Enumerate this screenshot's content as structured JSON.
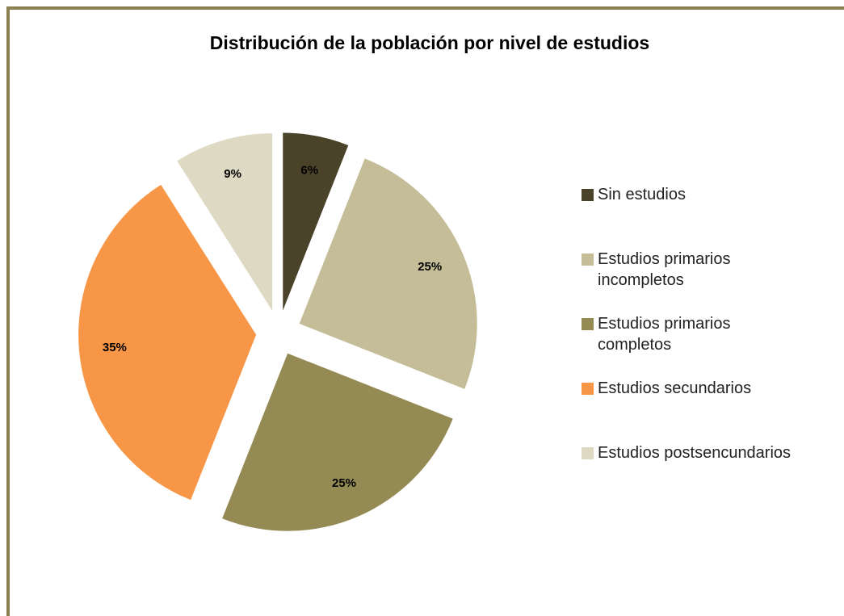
{
  "chart_data": {
    "type": "pie",
    "title": "Distribución de la población por nivel de estudios",
    "categories": [
      "Sin estudios",
      "Estudios primarios incompletos",
      "Estudios primarios completos",
      "Estudios secundarios",
      "Estudios postsencundarios"
    ],
    "values": [
      6,
      25,
      25,
      35,
      9
    ],
    "value_labels": [
      "6%",
      "25%",
      "25%",
      "35%",
      "9%"
    ],
    "colors": [
      "#4a4229",
      "#c4bd97",
      "#948a54",
      "#f79646",
      "#ddd9c3"
    ],
    "legend": "right"
  }
}
